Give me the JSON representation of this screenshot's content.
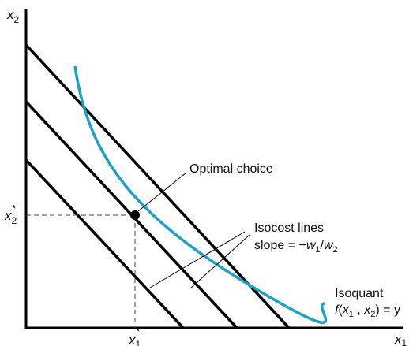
{
  "axes": {
    "x_label": "x",
    "x_sub": "1",
    "y_label": "x",
    "y_sub": "2"
  },
  "ticks": {
    "x_star": "x",
    "x_star_sub": "1",
    "x_star_sup": "*",
    "y_star": "x",
    "y_star_sub": "2",
    "y_star_sup": "*"
  },
  "annotations": {
    "optimal": "Optimal choice",
    "isocost_title": "Isocost lines",
    "isocost_slope_prefix": "slope = −",
    "isocost_w": "w",
    "isocost_w1_sub": "1",
    "isocost_slash": "/",
    "isocost_w2_sub": "2",
    "isoquant_title": "Isoquant",
    "isoquant_f": "f",
    "isoquant_open": "(",
    "isoquant_x1": "x",
    "isoquant_x1_sub": "1",
    "isoquant_comma": " , ",
    "isoquant_x2": "x",
    "isoquant_x2_sub": "2",
    "isoquant_close": ") = y"
  },
  "colors": {
    "isoquant": "#1aa3c7",
    "lines": "#000000",
    "dashed": "#444444"
  }
}
